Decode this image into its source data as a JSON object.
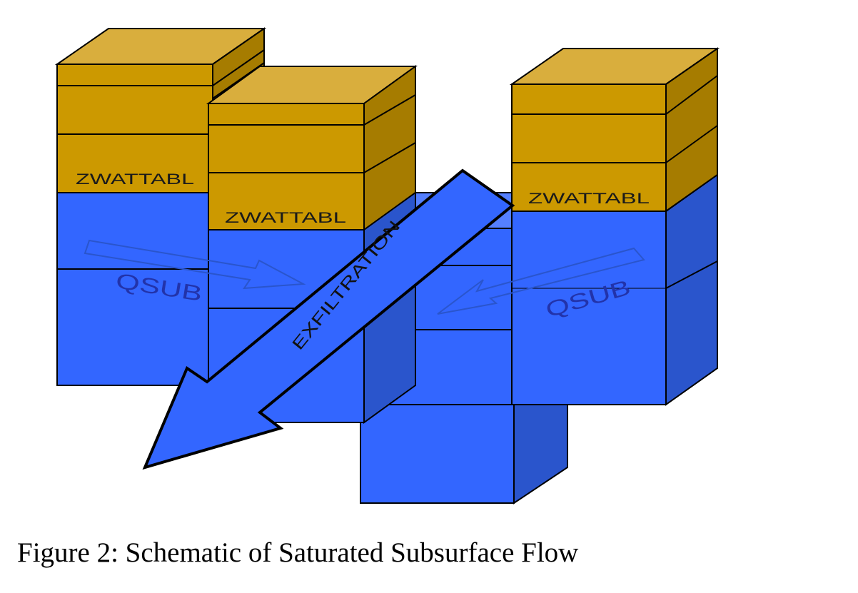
{
  "diagram": {
    "labels": {
      "water_table_left": "ZWATTABL",
      "water_table_middle": "ZWATTABL",
      "water_table_right": "ZWATTABL",
      "flow_left": "QSUB",
      "flow_right": "QSUB",
      "exfiltration": "EXFILTRATION"
    },
    "colors": {
      "soil_front": "#cc9900",
      "soil_top": "#d9ae3d",
      "soil_side": "#a67c00",
      "water_front": "#3366ff",
      "water_top": "#5580ff",
      "water_side": "#2a55cc",
      "outline": "#000000",
      "label_text": "#1a1a1a",
      "flow_text": "#2233aa"
    }
  },
  "caption": "Figure 2: Schematic of Saturated Subsurface Flow"
}
